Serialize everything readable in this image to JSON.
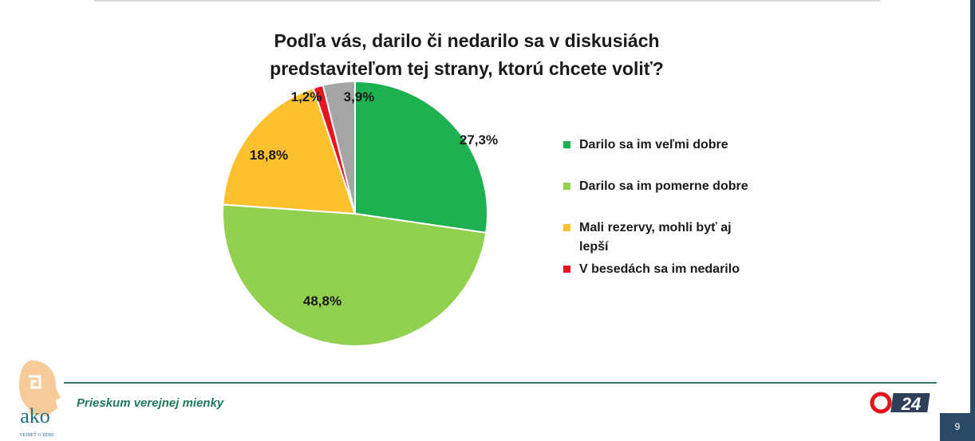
{
  "title_lines": [
    "Podľa vás, darilo či nedarilo sa v diskusiách",
    "predstaviteľom tej strany, ktorú chcete voliť?"
  ],
  "chart_data": {
    "type": "pie",
    "title": "Podľa vás, darilo či nedarilo sa v diskusiách predstaviteľom tej strany, ktorú chcete voliť?",
    "slices": [
      {
        "label": "Darilo sa im veľmi dobre",
        "value": 27.3,
        "display": "27,3%",
        "color": "#1db152"
      },
      {
        "label": "Darilo sa im pomerne dobre",
        "value": 48.8,
        "display": "48,8%",
        "color": "#92d050"
      },
      {
        "label": "Mali rezervy, mohli byť aj lepší",
        "value": 18.8,
        "display": "18,8%",
        "color": "#fdc02f"
      },
      {
        "label": "V besedách sa im nedarilo",
        "value": 1.2,
        "display": "1,2%",
        "color": "#e8141f"
      },
      {
        "label": "",
        "value": 3.9,
        "display": "3,9%",
        "color": "#a5a5a5"
      }
    ],
    "legend_position": "right"
  },
  "legend": [
    {
      "line1": "Darilo sa im veľmi dobre",
      "line2": "",
      "color": "#1db152"
    },
    {
      "line1": "Darilo sa im pomerne dobre",
      "line2": "",
      "color": "#92d050"
    },
    {
      "line1": "Mali rezervy, mohli byť aj",
      "line2": "lepší",
      "color": "#fdc02f"
    },
    {
      "line1": "V besedách sa im nedarilo",
      "line2": "",
      "color": "#e8141f"
    }
  ],
  "footer": {
    "text": "Prieskum verejnej mienky",
    "page_number": "9",
    "ako_logo_text": "ako",
    "ako_tagline": "VEDIEŤ O SEBE",
    "tv_logo_text": "24"
  },
  "colors": {
    "footer_accent": "#1f7a5a",
    "dark_bar": "#2a4a66"
  }
}
